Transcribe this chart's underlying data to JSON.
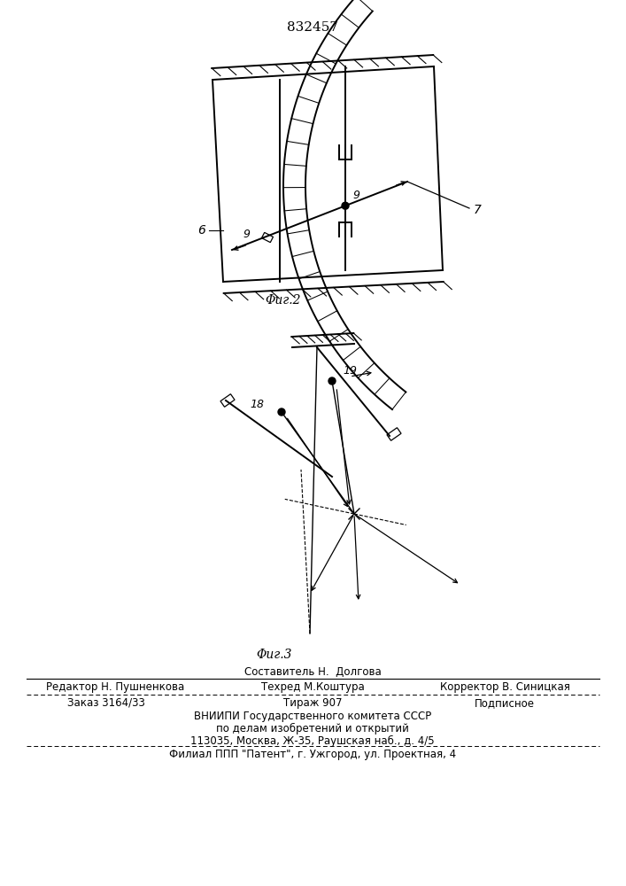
{
  "bg_color": "#ffffff",
  "patent_number": "832457",
  "fig2_label": "Φиг.2",
  "fig3_label": "Φиг.3",
  "label_6": "6",
  "label_7": "7",
  "label_9_upper": "9",
  "label_9_lower": "9",
  "label_18": "18",
  "label_19": "19",
  "footer_line0": "Составитель Н.  Долгова",
  "footer_line1": "Редактор Н. Пушненкова",
  "footer_line1b": "Техред М.Коштура",
  "footer_line1c": "Корректор В. Синицкая",
  "footer_line2a": "Заказ 3164/33",
  "footer_line2b": "Тираж 907",
  "footer_line2c": "Подписное",
  "footer_line3": "ВНИИПИ Государственного комитета СССР",
  "footer_line4": "по делам изобретений и открытий",
  "footer_line5": "113035, Москва, Ж-35, Раушская наб., д. 4/5",
  "footer_line6": "Филиал ППП \"Патент\", г. Ужгород, ул. Проектная, 4"
}
